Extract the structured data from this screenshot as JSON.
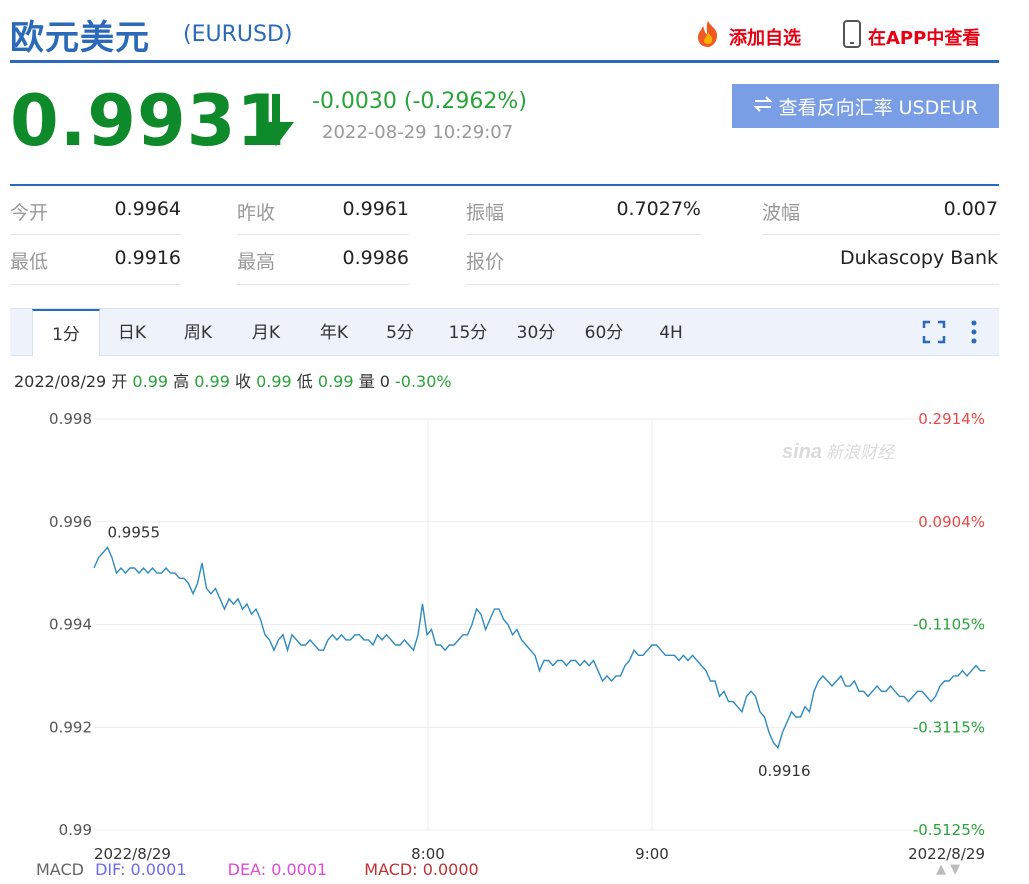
{
  "header": {
    "title": "欧元美元",
    "symbol": "(EURUSD)",
    "add_watchlist": "添加自选",
    "view_in_app": "在APP中查看"
  },
  "quote": {
    "price": "0.9931",
    "change": "-0.0030 (-0.2962%)",
    "timestamp": "2022-08-29 10:29:07",
    "reverse_button": "查看反向汇率 USDEUR"
  },
  "stats": {
    "open_label": "今开",
    "open_value": "0.9964",
    "prev_close_label": "昨收",
    "prev_close_value": "0.9961",
    "amplitude_label": "振幅",
    "amplitude_value": "0.7027%",
    "wave_label": "波幅",
    "wave_value": "0.007",
    "low_label": "最低",
    "low_value": "0.9916",
    "high_label": "最高",
    "high_value": "0.9986",
    "quote_by_label": "报价",
    "quote_by_value": "Dukascopy Bank"
  },
  "tabs": [
    "1分",
    "日K",
    "周K",
    "月K",
    "年K",
    "5分",
    "15分",
    "30分",
    "60分",
    "4H"
  ],
  "active_tab": "1分",
  "ohlc": {
    "date": "2022/08/29",
    "open_label": "开",
    "open": "0.99",
    "high_label": "高",
    "high": "0.99",
    "close_label": "收",
    "close": "0.99",
    "low_label": "低",
    "low": "0.99",
    "volume_label": "量",
    "volume": "0",
    "pct": "-0.30%"
  },
  "chart_data": {
    "type": "line",
    "y_ticks": [
      "0.998",
      "0.996",
      "0.994",
      "0.992",
      "0.99"
    ],
    "y_tick_values": [
      0.998,
      0.996,
      0.994,
      0.992,
      0.99
    ],
    "pct_ticks": [
      "0.2914%",
      "0.0904%",
      "-0.1105%",
      "-0.3115%",
      "-0.5125%"
    ],
    "x_ticks": [
      "2022/8/29",
      "8:00",
      "9:00",
      "2022/8/29"
    ],
    "ylim": [
      0.99,
      0.998
    ],
    "max_label": "0.9955",
    "min_label": "0.9916",
    "watermark": "sina 新浪财经",
    "series": [
      {
        "values": [
          0.9951,
          0.9953,
          0.9954,
          0.9955,
          0.9953,
          0.995,
          0.9951,
          0.995,
          0.9951,
          0.9951,
          0.995,
          0.9951,
          0.995,
          0.9951,
          0.995,
          0.995,
          0.9951,
          0.995,
          0.995,
          0.9949,
          0.9949,
          0.9948,
          0.9946,
          0.9948,
          0.9952,
          0.9947,
          0.9946,
          0.9947,
          0.9945,
          0.9943,
          0.9945,
          0.9944,
          0.9945,
          0.9943,
          0.9944,
          0.9942,
          0.9943,
          0.9941,
          0.9938,
          0.9937,
          0.9935,
          0.9937,
          0.9938,
          0.9935,
          0.9938,
          0.9937,
          0.9936,
          0.9936,
          0.9937,
          0.9936,
          0.9935,
          0.9935,
          0.9937,
          0.9938,
          0.9937,
          0.9938,
          0.9937,
          0.9937,
          0.9938,
          0.9938,
          0.9937,
          0.9937,
          0.9936,
          0.9938,
          0.9937,
          0.9938,
          0.9937,
          0.9936,
          0.9936,
          0.9937,
          0.9936,
          0.9935,
          0.9938,
          0.9944,
          0.9938,
          0.9939,
          0.9936,
          0.9936,
          0.9935,
          0.9936,
          0.9936,
          0.9937,
          0.9938,
          0.9938,
          0.994,
          0.9943,
          0.9942,
          0.9939,
          0.9941,
          0.9943,
          0.9943,
          0.9941,
          0.994,
          0.9938,
          0.9939,
          0.9937,
          0.9936,
          0.9935,
          0.9934,
          0.9931,
          0.9933,
          0.9933,
          0.9932,
          0.9933,
          0.9933,
          0.9932,
          0.9933,
          0.9933,
          0.9932,
          0.9933,
          0.9932,
          0.9933,
          0.9931,
          0.9929,
          0.993,
          0.9929,
          0.993,
          0.993,
          0.9932,
          0.9933,
          0.9935,
          0.9934,
          0.9934,
          0.9935,
          0.9936,
          0.9936,
          0.9935,
          0.9934,
          0.9934,
          0.9934,
          0.9933,
          0.9934,
          0.9933,
          0.9934,
          0.9933,
          0.9932,
          0.9931,
          0.9929,
          0.9929,
          0.9926,
          0.9927,
          0.9925,
          0.9925,
          0.9924,
          0.9923,
          0.9926,
          0.9927,
          0.9926,
          0.9923,
          0.9922,
          0.9919,
          0.9917,
          0.9916,
          0.9919,
          0.9921,
          0.9923,
          0.9922,
          0.9922,
          0.9924,
          0.9923,
          0.9927,
          0.9929,
          0.993,
          0.9929,
          0.9928,
          0.9929,
          0.993,
          0.9928,
          0.9928,
          0.9929,
          0.9927,
          0.9927,
          0.9926,
          0.9927,
          0.9928,
          0.9927,
          0.9927,
          0.9928,
          0.9927,
          0.9926,
          0.9926,
          0.9925,
          0.9926,
          0.9927,
          0.9927,
          0.9926,
          0.9925,
          0.9926,
          0.9928,
          0.9929,
          0.9929,
          0.993,
          0.993,
          0.9931,
          0.993,
          0.9931,
          0.9932,
          0.9931,
          0.9931
        ]
      }
    ]
  },
  "macd": {
    "label": "MACD",
    "dif": "DIF: 0.0001",
    "dea": "DEA: 0.0001",
    "macd": "MACD: 0.0000"
  },
  "colors": {
    "brand_blue": "#2a6ab8",
    "down_green": "#0f8a2a",
    "up_red": "#e60012",
    "line": "#2e8bc0"
  }
}
